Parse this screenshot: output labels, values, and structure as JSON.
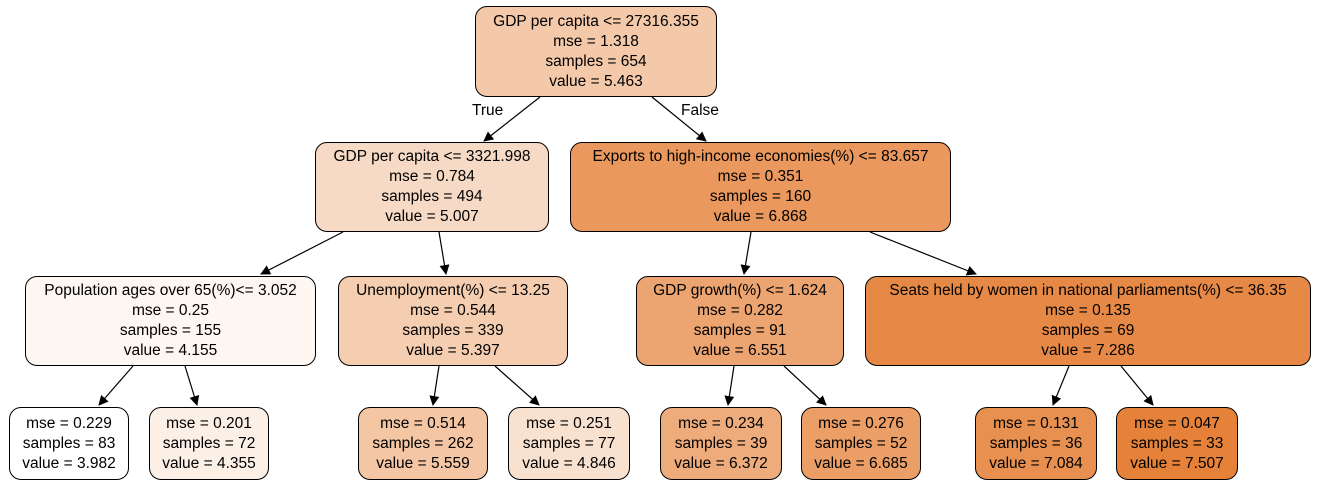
{
  "tree": {
    "edge_labels": {
      "true": "True",
      "false": "False"
    },
    "nodes": [
      {
        "id": "root",
        "split": "GDP per capita <= 27316.355",
        "mse": "mse = 1.318",
        "samples": "samples = 654",
        "value": "value = 5.463",
        "fill": "#f4c9aa"
      },
      {
        "id": "l1",
        "split": "GDP per capita <= 3321.998",
        "mse": "mse = 0.784",
        "samples": "samples = 494",
        "value": "value = 5.007",
        "fill": "#f7dac5"
      },
      {
        "id": "r1",
        "split": "Exports to high-income economies(%) <= 83.657",
        "mse": "mse = 0.351",
        "samples": "samples = 160",
        "value": "value = 6.868",
        "fill": "#ea985d"
      },
      {
        "id": "ll2",
        "split": "Population ages over 65(%)<= 3.052",
        "mse": "mse = 0.25",
        "samples": "samples = 155",
        "value": "value = 4.155",
        "fill": "#fdf6f1"
      },
      {
        "id": "lr2",
        "split": "Unemployment(%) <= 13.25",
        "mse": "mse = 0.544",
        "samples": "samples = 339",
        "value": "value = 5.397",
        "fill": "#f5cdb0"
      },
      {
        "id": "rl2",
        "split": "GDP growth(%) <= 1.624",
        "mse": "mse = 0.282",
        "samples": "samples = 91",
        "value": "value = 6.551",
        "fill": "#eca471"
      },
      {
        "id": "rr2",
        "split": "Seats held by women in national parliaments(%) <= 36.35",
        "mse": "mse = 0.135",
        "samples": "samples = 69",
        "value": "value = 7.286",
        "fill": "#e78946"
      },
      {
        "id": "lll3",
        "split": "",
        "mse": "mse = 0.229",
        "samples": "samples = 83",
        "value": "value = 3.982",
        "fill": "#ffffff"
      },
      {
        "id": "llr3",
        "split": "",
        "mse": "mse = 0.201",
        "samples": "samples = 72",
        "value": "value = 4.355",
        "fill": "#fcefe6"
      },
      {
        "id": "lrl3",
        "split": "",
        "mse": "mse = 0.514",
        "samples": "samples = 262",
        "value": "value = 5.559",
        "fill": "#f4c6a4"
      },
      {
        "id": "lrr3",
        "split": "",
        "mse": "mse = 0.251",
        "samples": "samples = 77",
        "value": "value = 4.846",
        "fill": "#f9e1cf"
      },
      {
        "id": "rll3",
        "split": "",
        "mse": "mse = 0.234",
        "samples": "samples = 39",
        "value": "value = 6.372",
        "fill": "#eeac7c"
      },
      {
        "id": "rlr3",
        "split": "",
        "mse": "mse = 0.276",
        "samples": "samples = 52",
        "value": "value = 6.685",
        "fill": "#eb9e66"
      },
      {
        "id": "rrl3",
        "split": "",
        "mse": "mse = 0.131",
        "samples": "samples = 36",
        "value": "value = 7.084",
        "fill": "#e89050"
      },
      {
        "id": "rrr3",
        "split": "",
        "mse": "mse = 0.047",
        "samples": "samples = 33",
        "value": "value = 7.507",
        "fill": "#e58139"
      }
    ]
  }
}
